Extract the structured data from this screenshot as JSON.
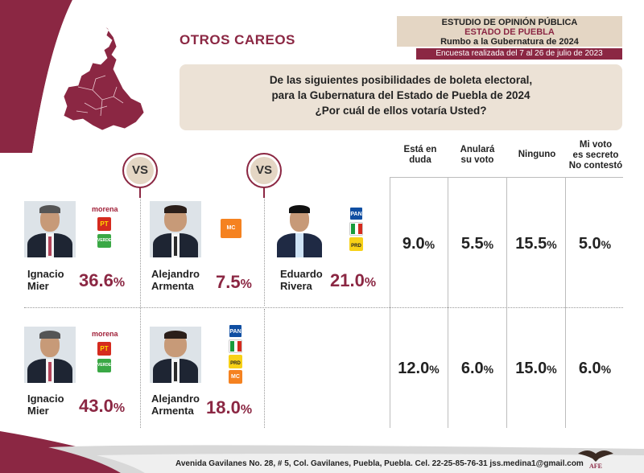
{
  "section_title": "OTROS CAREOS",
  "header": {
    "line1": "ESTUDIO DE OPINIÓN PÚBLICA",
    "line2": "ESTADO DE PUEBLA",
    "line3": "Rumbo a la Gubernatura de 2024",
    "date": "Encuesta realizada del 7 al 26 de julio de 2023"
  },
  "question": {
    "line1": "De las siguientes posibilidades de boleta electoral,",
    "line2": "para la Gubernatura del Estado de Puebla de 2024",
    "line3": "¿Por cuál de ellos votaría Usted?"
  },
  "vs_label": "VS",
  "columns": {
    "duda": [
      "Está en",
      "duda"
    ],
    "anulara": [
      "Anulará",
      "su voto"
    ],
    "ninguno": [
      "Ninguno"
    ],
    "secreto": [
      "Mi voto",
      "es secreto",
      "No contestó"
    ]
  },
  "parties": {
    "morena": "morena",
    "pt": "PT",
    "verde": "VERDE",
    "pan": "PAN",
    "pri": "PRI",
    "prd": "PRD",
    "mc": "MC"
  },
  "colors": {
    "maroon": "#8b2743",
    "beige": "#e4d6c4"
  },
  "chart_data": {
    "type": "table",
    "title": "OTROS CAREOS",
    "rows": [
      {
        "candidates": [
          {
            "first": "Ignacio",
            "last": "Mier",
            "pct": "36.6",
            "parties": [
              "morena",
              "PT",
              "VERDE"
            ]
          },
          {
            "first": "Alejandro",
            "last": "Armenta",
            "pct": "7.5",
            "parties": [
              "MC"
            ]
          },
          {
            "first": "Eduardo",
            "last": "Rivera",
            "pct": "21.0",
            "parties": [
              "PAN",
              "PRI",
              "PRD"
            ]
          }
        ],
        "duda": "9.0",
        "anulara": "5.5",
        "ninguno": "15.5",
        "secreto": "5.0"
      },
      {
        "candidates": [
          {
            "first": "Ignacio",
            "last": "Mier",
            "pct": "43.0",
            "parties": [
              "morena",
              "PT",
              "VERDE"
            ]
          },
          {
            "first": "Alejandro",
            "last": "Armenta",
            "pct": "18.0",
            "parties": [
              "PAN",
              "PRI",
              "PRD",
              "MC"
            ]
          }
        ],
        "duda": "12.0",
        "anulara": "6.0",
        "ninguno": "15.0",
        "secreto": "6.0"
      }
    ]
  },
  "percent_sign": "%",
  "footer": {
    "address": "Avenida Gavilanes No. 28, # 5, Col. Gavilanes, Puebla, Puebla. Cel. 22-25-85-76-31  jss.medina1@gmail.com",
    "logo_text": "AFE"
  }
}
